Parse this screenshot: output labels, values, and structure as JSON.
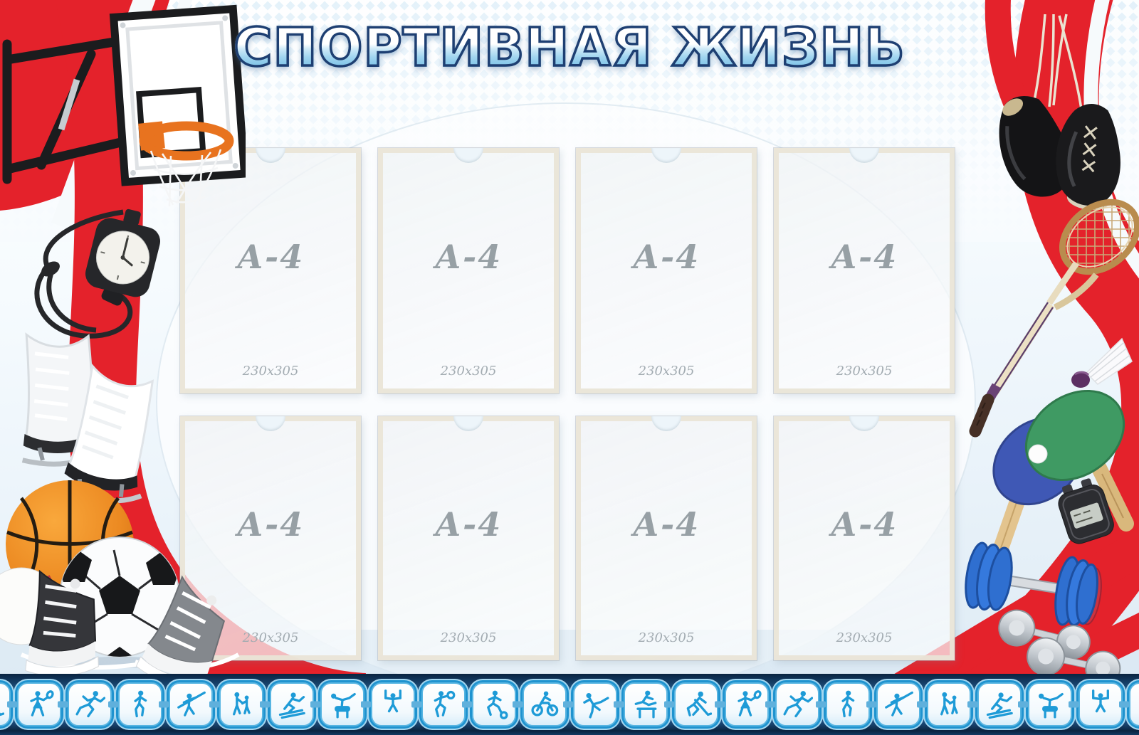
{
  "board": {
    "title": "СПОРТИВНАЯ ЖИЗНЬ",
    "kind": "sports information stand with A4 pockets"
  },
  "palette": {
    "red": "#e4222b",
    "icon_blue": "#1e9bd7",
    "strip_navy": "#123a63",
    "title_outline": "#1e3f72",
    "pocket_border": "#e9e4d6"
  },
  "pockets": {
    "rows": 2,
    "columns": 4,
    "items": [
      {
        "label": "А-4",
        "size": "230x305"
      },
      {
        "label": "А-4",
        "size": "230x305"
      },
      {
        "label": "А-4",
        "size": "230x305"
      },
      {
        "label": "А-4",
        "size": "230x305"
      },
      {
        "label": "А-4",
        "size": "230x305"
      },
      {
        "label": "А-4",
        "size": "230x305"
      },
      {
        "label": "А-4",
        "size": "230x305"
      },
      {
        "label": "А-4",
        "size": "230x305"
      }
    ]
  },
  "icon_strip": {
    "icons": [
      "hockey",
      "badminton",
      "sprinter",
      "jogger",
      "javelin",
      "pair",
      "skier",
      "pommel",
      "rings",
      "basketball",
      "football",
      "cyclist",
      "gymnast",
      "hurdles",
      "hockey",
      "badminton",
      "sprinter",
      "jogger",
      "javelin",
      "pair",
      "skier",
      "pommel",
      "rings",
      "basketball"
    ]
  },
  "decorations": [
    "basketball-hoop",
    "analog-stopwatch",
    "figure-skates",
    "basketball",
    "baseball",
    "soccer-ball",
    "sneakers",
    "boxing-gloves",
    "badminton-racket",
    "shuttlecock",
    "table-tennis-paddles",
    "digital-stopwatch",
    "dumbbells"
  ]
}
